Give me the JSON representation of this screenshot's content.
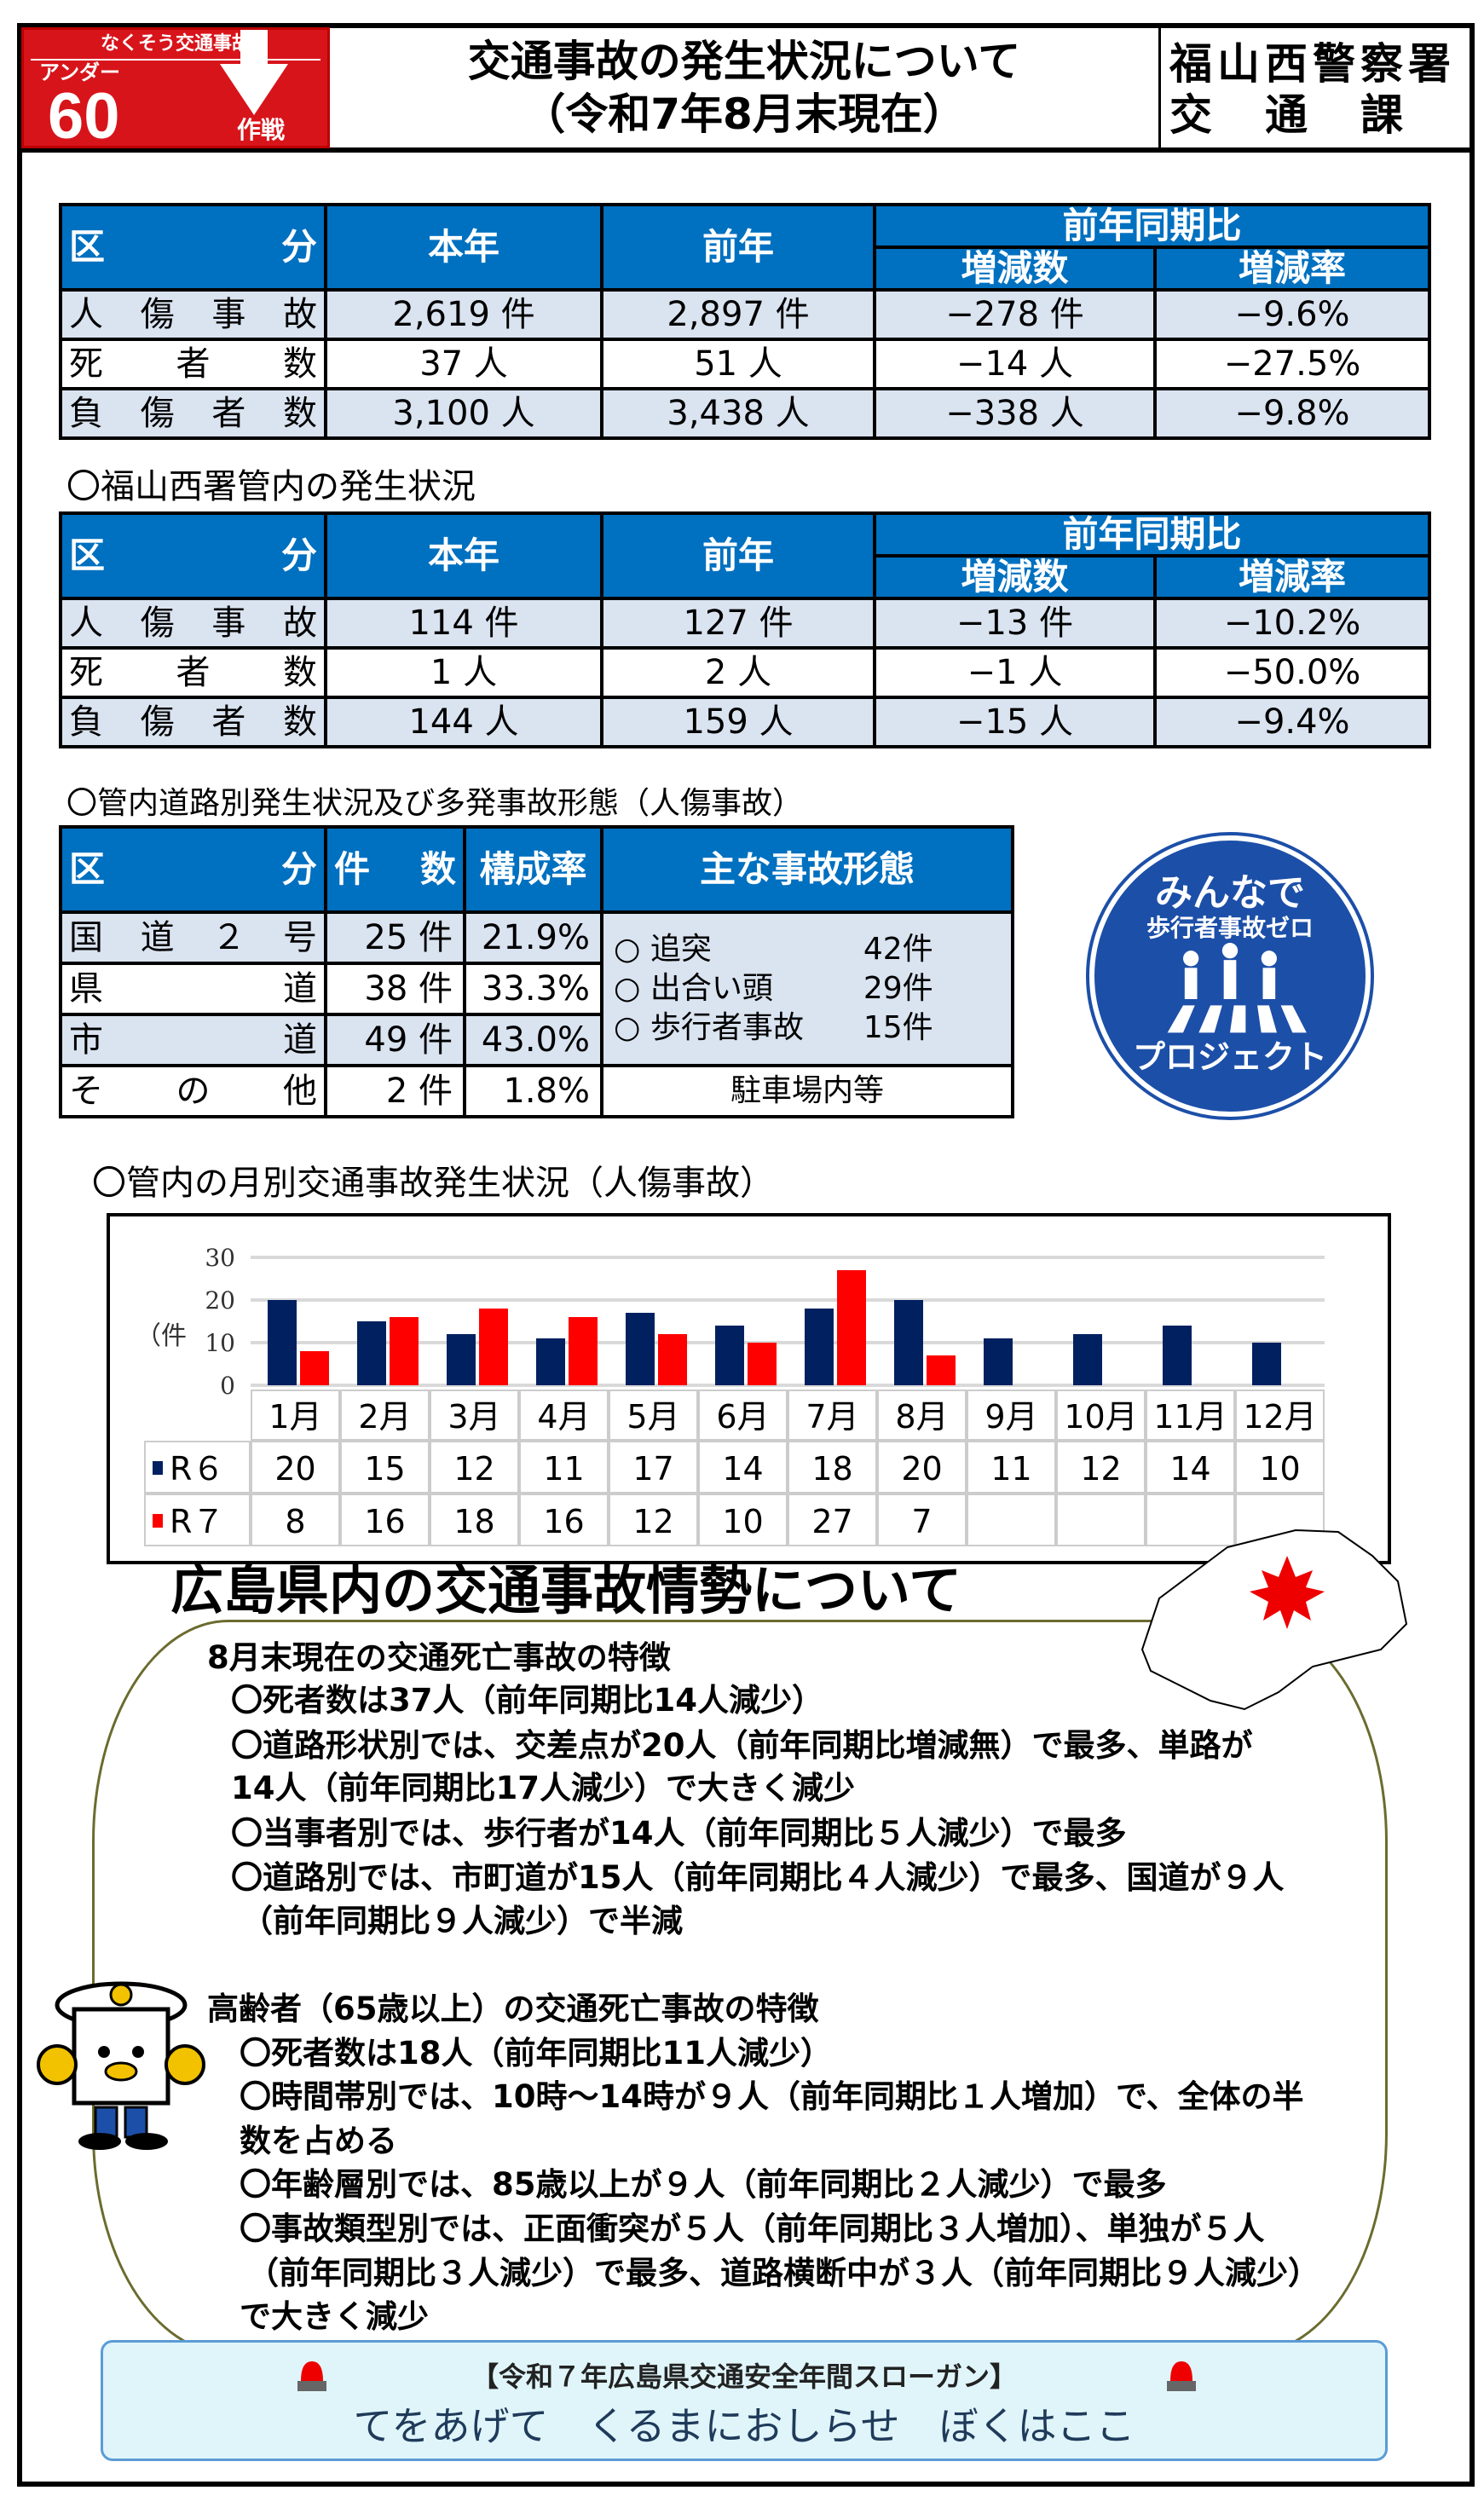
{
  "header": {
    "logo": {
      "top": "なくそう交通事故",
      "under": "アンダー",
      "number": "60",
      "strategy": "作戦"
    },
    "title_line1": "交通事故の発生状況について",
    "title_line2": "（令和7年8月末現在）",
    "dept_line1": "福山西警察署",
    "dept_line2": "交　通　課"
  },
  "table_headers": {
    "category": "区　　　分",
    "this_year": "本年",
    "last_year": "前年",
    "compare": "前年同期比",
    "diff": "増減数",
    "rate": "増減率"
  },
  "pref_table": {
    "rows": [
      {
        "label": "人傷事故",
        "this_year": "2,619 件",
        "last_year": "2,897 件",
        "diff": "−278 件",
        "rate": "−9.6%"
      },
      {
        "label": "死者数",
        "this_year": "37 人",
        "last_year": "51 人",
        "diff": "−14 人",
        "rate": "−27.5%"
      },
      {
        "label": "負傷者数",
        "this_year": "3,100 人",
        "last_year": "3,438 人",
        "diff": "−338 人",
        "rate": "−9.8%"
      }
    ]
  },
  "local_caption": "〇福山西署管内の発生状況",
  "local_table": {
    "rows": [
      {
        "label": "人傷事故",
        "this_year": "114 件",
        "last_year": "127 件",
        "diff": "−13 件",
        "rate": "−10.2%"
      },
      {
        "label": "死者数",
        "this_year": "1 人",
        "last_year": "2 人",
        "diff": "−1 人",
        "rate": "−50.0%"
      },
      {
        "label": "負傷者数",
        "this_year": "144 人",
        "last_year": "159 人",
        "diff": "−15 人",
        "rate": "−9.4%"
      }
    ]
  },
  "road_caption": "〇管内道路別発生状況及び多発事故形態（人傷事故）",
  "road_table": {
    "headers": {
      "category": "区　　　分",
      "count": "件　数",
      "ratio": "構成率",
      "types": "主な事故形態"
    },
    "rows": [
      {
        "label": "国道２号",
        "count": "25 件",
        "ratio": "21.9%"
      },
      {
        "label": "県道",
        "count": "38 件",
        "ratio": "33.3%"
      },
      {
        "label": "市道",
        "count": "49 件",
        "ratio": "43.0%"
      },
      {
        "label": "その他",
        "count": "2 件",
        "ratio": "1.8%"
      }
    ],
    "types": [
      {
        "name": "追突",
        "count": "42件"
      },
      {
        "name": "出合い頭",
        "count": "29件"
      },
      {
        "name": "歩行者事故",
        "count": "15件"
      }
    ],
    "other_note": "駐車場内等"
  },
  "badge": {
    "line1": "みんなで",
    "line2": "歩行者事故ゼロ",
    "line3": "プロジェクト"
  },
  "chart_caption": "〇管内の月別交通事故発生状況（人傷事故）",
  "chart_data": {
    "type": "bar",
    "ylabel": "（件",
    "categories": [
      "1月",
      "2月",
      "3月",
      "4月",
      "5月",
      "6月",
      "7月",
      "8月",
      "9月",
      "10月",
      "11月",
      "12月"
    ],
    "ylim": [
      0,
      30
    ],
    "yticks": [
      "30",
      "20",
      "10",
      "0"
    ],
    "grid": true,
    "series": [
      {
        "name": "R６",
        "color": "#002060",
        "values": [
          20,
          15,
          12,
          11,
          17,
          14,
          18,
          20,
          11,
          12,
          14,
          10
        ]
      },
      {
        "name": "R７",
        "color": "#ff0000",
        "values": [
          8,
          16,
          18,
          16,
          12,
          10,
          27,
          7,
          null,
          null,
          null,
          null
        ]
      }
    ]
  },
  "pref_section": {
    "title": "広島県内の交通事故情勢について",
    "lines": [
      "8月末現在の交通死亡事故の特徴",
      "〇死者数は37人（前年同期比14人減少）",
      "〇道路形状別では、交差点が20人（前年同期比増減無）で最多、単路が",
      "14人（前年同期比17人減少）で大きく減少",
      "〇当事者別では、歩行者が14人（前年同期比５人減少）で最多",
      "〇道路別では、市町道が15人（前年同期比４人減少）で最多、国道が９人",
      "（前年同期比９人減少）で半減",
      "高齢者（65歳以上）の交通死亡事故の特徴",
      "〇死者数は18人（前年同期比11人減少）",
      "〇時間帯別では、10時～14時が９人（前年同期比１人増加）で、全体の半",
      "数を占める",
      "〇年齢層別では、85歳以上が９人（前年同期比２人減少）で最多",
      "〇事故類型別では、正面衝突が５人（前年同期比３人増加）、単独が５人",
      "（前年同期比３人減少）で最多、道路横断中が３人（前年同期比９人減少）",
      "で大きく減少"
    ]
  },
  "slogan": {
    "title": "【令和７年広島県交通安全年間スローガン】",
    "text": "てをあげて　くるまにおしらせ　ぼくはここ"
  }
}
